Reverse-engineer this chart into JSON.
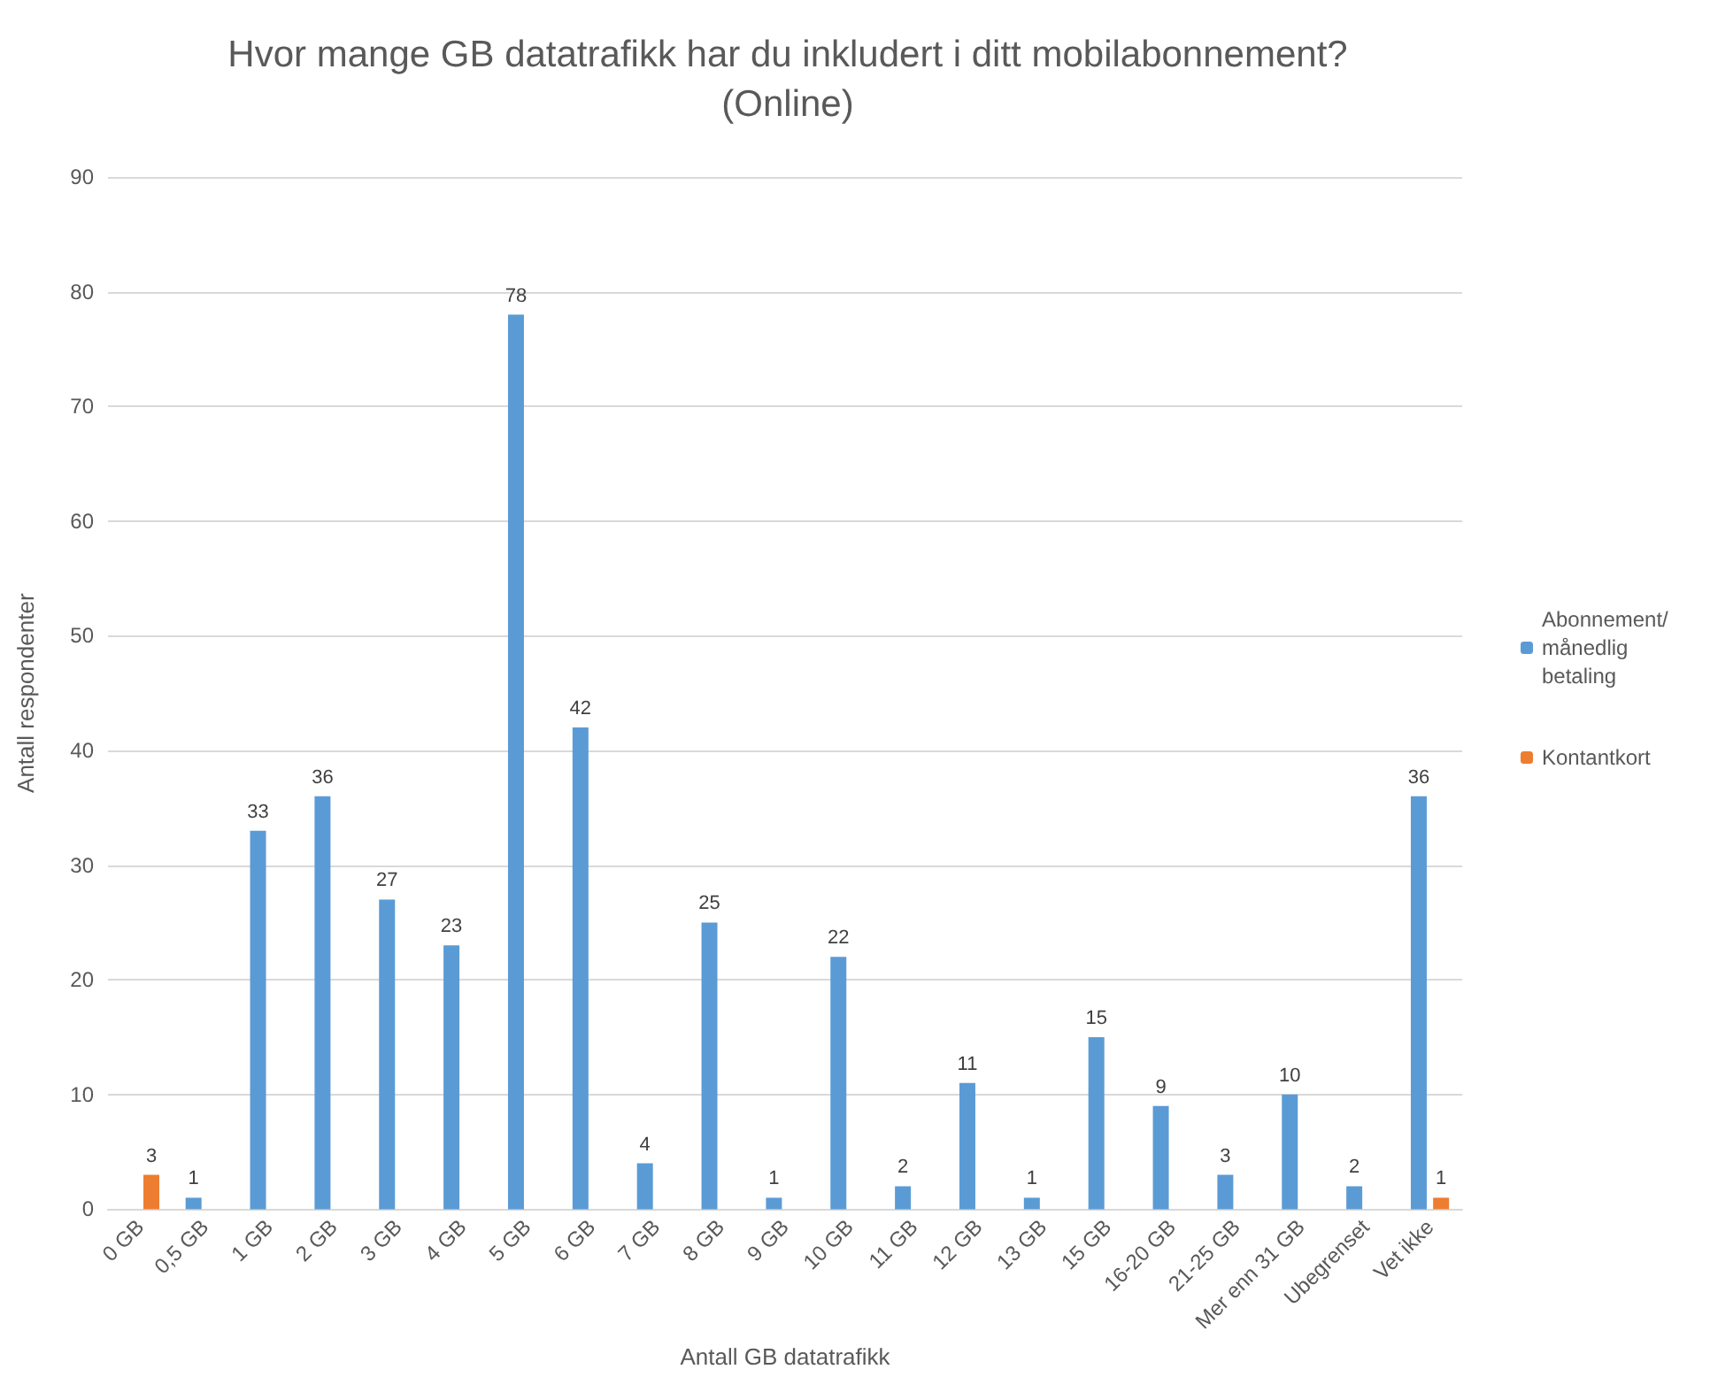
{
  "chart_data": {
    "type": "bar",
    "title": "Hvor mange GB datatrafikk har du inkludert i ditt mobilabonnement?\n(Online)",
    "xlabel": "Antall GB datatrafikk",
    "ylabel": "Antall respondenter",
    "categories": [
      "0 GB",
      "0,5 GB",
      "1 GB",
      "2 GB",
      "3 GB",
      "4 GB",
      "5 GB",
      "6 GB",
      "7 GB",
      "8 GB",
      "9 GB",
      "10 GB",
      "11 GB",
      "12 GB",
      "13 GB",
      "15 GB",
      "16-20 GB",
      "21-25 GB",
      "Mer enn 31 GB",
      "Ubegrenset",
      "Vet ikke"
    ],
    "series": [
      {
        "name": "Abonnement/ månedlig betaling",
        "color": "#5b9bd5",
        "values": [
          null,
          1,
          33,
          36,
          27,
          23,
          78,
          42,
          4,
          25,
          1,
          22,
          2,
          11,
          1,
          15,
          9,
          3,
          10,
          2,
          36
        ]
      },
      {
        "name": "Kontantkort",
        "color": "#ed7d31",
        "values": [
          3,
          null,
          null,
          null,
          null,
          null,
          null,
          null,
          null,
          null,
          null,
          null,
          null,
          null,
          null,
          null,
          null,
          null,
          null,
          null,
          1
        ]
      }
    ],
    "ylim": [
      0,
      90
    ],
    "yticks": [
      0,
      10,
      20,
      30,
      40,
      50,
      60,
      70,
      80,
      90
    ],
    "grid": "y",
    "legend": "right",
    "data_labels": true
  }
}
